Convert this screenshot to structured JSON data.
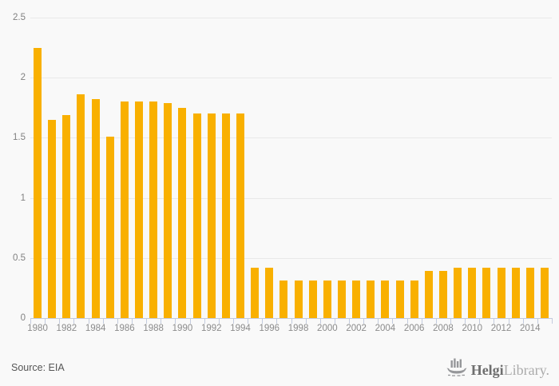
{
  "chart_data": {
    "type": "bar",
    "title": "",
    "categories": [
      1980,
      1981,
      1982,
      1983,
      1984,
      1985,
      1986,
      1987,
      1988,
      1989,
      1990,
      1991,
      1992,
      1993,
      1994,
      1995,
      1996,
      1997,
      1998,
      1999,
      2000,
      2001,
      2002,
      2003,
      2004,
      2005,
      2006,
      2007,
      2008,
      2009,
      2010,
      2011,
      2012,
      2013,
      2014,
      2015
    ],
    "values": [
      2.25,
      1.65,
      1.69,
      1.86,
      1.82,
      1.51,
      1.8,
      1.8,
      1.8,
      1.79,
      1.75,
      1.7,
      1.7,
      1.7,
      1.7,
      0.42,
      0.42,
      0.31,
      0.31,
      0.31,
      0.31,
      0.31,
      0.31,
      0.31,
      0.31,
      0.31,
      0.31,
      0.39,
      0.39,
      0.42,
      0.42,
      0.42,
      0.42,
      0.42,
      0.42,
      0.42
    ],
    "xlabel": "",
    "ylabel": "",
    "ylim": [
      0,
      2.5
    ],
    "y_ticks": [
      0,
      0.5,
      1,
      1.5,
      2,
      2.5
    ],
    "y_tick_labels": [
      "0",
      "0.5",
      "1",
      "1.5",
      "2",
      "2.5"
    ],
    "x_tick_labels": [
      "1980",
      "1982",
      "1984",
      "1986",
      "1988",
      "1990",
      "1992",
      "1994",
      "1996",
      "1998",
      "2000",
      "2002",
      "2004",
      "2006",
      "2008",
      "2010",
      "2012",
      "2014"
    ],
    "grid": true,
    "legend_position": "none"
  },
  "colors": {
    "bar": "#F9B000",
    "background": "#f9f9f9",
    "gridline": "#e9e9e9",
    "axis": "#c3cbdd",
    "tick_label": "#8b8b8b"
  },
  "footer": {
    "source_label": "Source: EIA",
    "logo": {
      "icon": "helgi-ship-bar-chart-icon",
      "name_bold": "Helgi",
      "name_light": "Library."
    }
  }
}
